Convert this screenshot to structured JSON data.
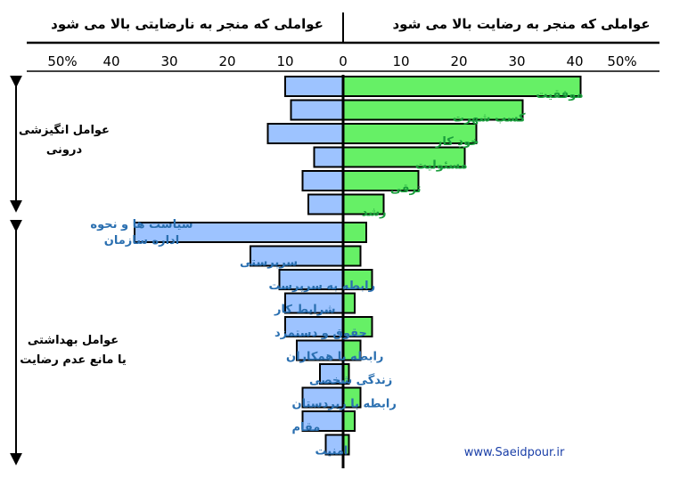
{
  "chart_data": {
    "type": "bar",
    "orientation": "horizontal-diverging",
    "header_left": "عواملی که منجر به نارضایتی بالا می شود",
    "header_right": "عواملی که منجر به رضایت بالا می شود",
    "axis_ticks_left": [
      "50%",
      "40",
      "30",
      "20",
      "10"
    ],
    "axis_zero": "0",
    "axis_ticks_right": [
      "10",
      "20",
      "30",
      "40",
      "50%"
    ],
    "xlim": [
      -50,
      50
    ],
    "colors": {
      "satisfaction": "#66f066",
      "dissatisfaction": "#9dc3ff",
      "outline": "#000000",
      "label_satisfaction": "#1a9e3c",
      "label_dissatisfaction": "#2a6fb0"
    },
    "motivators": {
      "group_label_line1": "عوامل انگیزشی",
      "group_label_line2": "درونی",
      "items": [
        {
          "label": "موفقیت",
          "satisfaction": 41,
          "dissatisfaction": 10
        },
        {
          "label": "کسب شهرت",
          "satisfaction": 31,
          "dissatisfaction": 9
        },
        {
          "label": "خودِ کار",
          "satisfaction": 23,
          "dissatisfaction": 13
        },
        {
          "label": "مسئولیت",
          "satisfaction": 21,
          "dissatisfaction": 5
        },
        {
          "label": "ترقی",
          "satisfaction": 13,
          "dissatisfaction": 7
        },
        {
          "label": "رشد",
          "satisfaction": 7,
          "dissatisfaction": 6
        }
      ]
    },
    "hygiene": {
      "group_label_line1": "عوامل بهداشتی",
      "group_label_line2": "یا مانع عدم رضایت",
      "items": [
        {
          "label_line1": "سیاست ها و نحوه",
          "label_line2": "اداره سازمان",
          "satisfaction": 4,
          "dissatisfaction": 36
        },
        {
          "label": "سرپرستی",
          "satisfaction": 3,
          "dissatisfaction": 16
        },
        {
          "label": "رابطه به سرپرست",
          "satisfaction": 5,
          "dissatisfaction": 11
        },
        {
          "label": "شرایط کار",
          "satisfaction": 2,
          "dissatisfaction": 10
        },
        {
          "label": "حقوق و دستمزد",
          "satisfaction": 5,
          "dissatisfaction": 10
        },
        {
          "label": "رابطه با همکاران",
          "satisfaction": 3,
          "dissatisfaction": 8
        },
        {
          "label": "زندگی شخصی",
          "satisfaction": 1,
          "dissatisfaction": 4
        },
        {
          "label": "رابطه با زیردستان",
          "satisfaction": 3,
          "dissatisfaction": 7
        },
        {
          "label": "مقام",
          "satisfaction": 2,
          "dissatisfaction": 7
        },
        {
          "label": "امنیت",
          "satisfaction": 1,
          "dissatisfaction": 3
        }
      ]
    },
    "watermark": "www.Saeidpour.ir"
  }
}
